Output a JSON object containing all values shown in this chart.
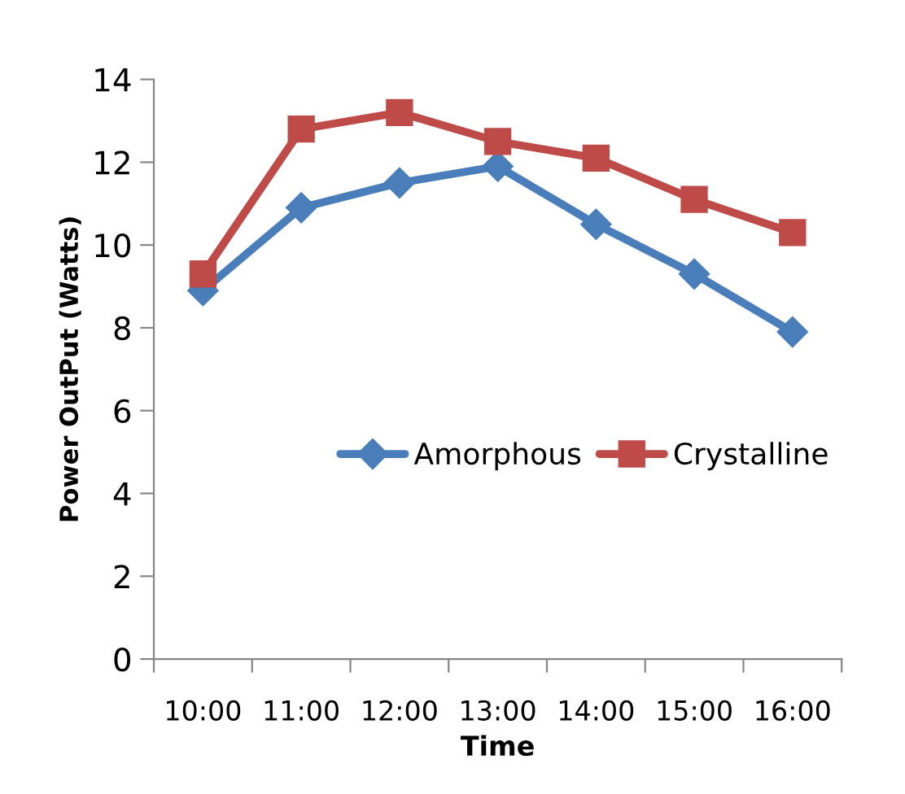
{
  "chart_data": {
    "type": "line",
    "xlabel": "Time",
    "ylabel": "Power OutPut (Watts)",
    "categories": [
      "10:00",
      "11:00",
      "12:00",
      "13:00",
      "14:00",
      "15:00",
      "16:00"
    ],
    "series": [
      {
        "name": "Amorphous",
        "color": "#4a7ebb",
        "marker": "diamond",
        "values": [
          8.9,
          10.9,
          11.5,
          11.9,
          10.5,
          9.3,
          7.9
        ]
      },
      {
        "name": "Crystalline",
        "color": "#be4b48",
        "marker": "square",
        "values": [
          9.3,
          12.8,
          13.2,
          12.5,
          12.1,
          11.1,
          10.3
        ]
      }
    ],
    "ylim": [
      0,
      14
    ],
    "yticks": [
      0,
      2,
      4,
      6,
      8,
      10,
      12,
      14
    ],
    "grid": false,
    "legend": "center right"
  }
}
